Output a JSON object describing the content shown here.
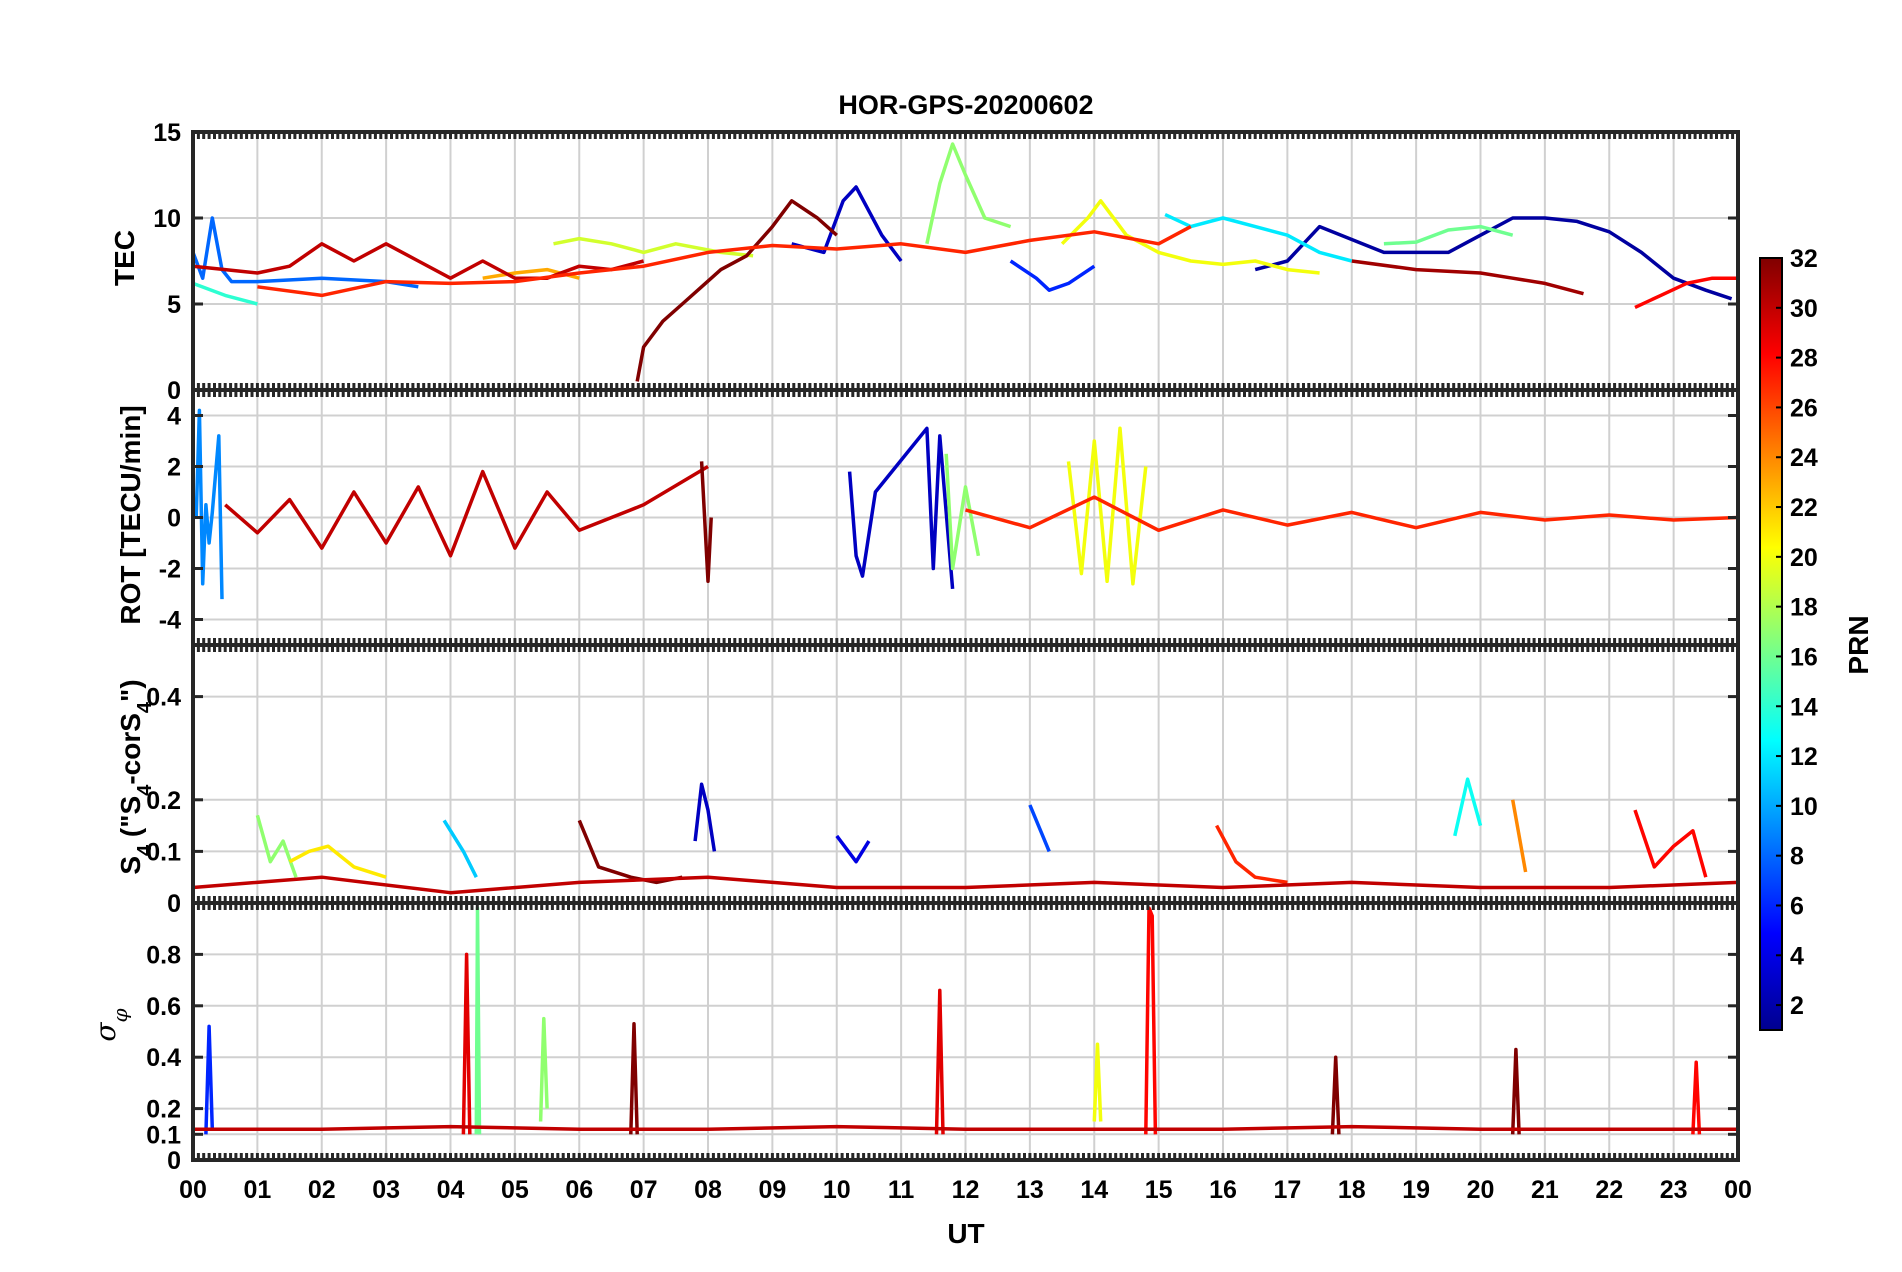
{
  "chart_data": {
    "type": "line",
    "title": "HOR-GPS-20200602",
    "xlabel": "UT",
    "x_ticks": [
      "00",
      "01",
      "02",
      "03",
      "04",
      "05",
      "06",
      "07",
      "08",
      "09",
      "10",
      "11",
      "12",
      "13",
      "14",
      "15",
      "16",
      "17",
      "18",
      "19",
      "20",
      "21",
      "22",
      "23",
      "00"
    ],
    "xlim": [
      0,
      24
    ],
    "colorbar": {
      "label": "PRN",
      "range": [
        1,
        32
      ],
      "ticks": [
        "2",
        "4",
        "6",
        "8",
        "10",
        "12",
        "14",
        "16",
        "18",
        "20",
        "22",
        "24",
        "26",
        "28",
        "30",
        "32"
      ],
      "colormap": [
        "#00008f",
        "#0000ff",
        "#0080ff",
        "#00ffff",
        "#80ff80",
        "#ffff00",
        "#ff8000",
        "#ff0000",
        "#800000"
      ]
    },
    "panels": [
      {
        "id": "tec",
        "ylabel": "TEC",
        "ylim": [
          0,
          15
        ],
        "y_ticks": [
          "0",
          "5",
          "10",
          "15"
        ],
        "series": [
          {
            "prn": 3,
            "x": [
              9.3,
              9.8,
              10.1,
              10.3,
              10.7,
              11.0
            ],
            "y": [
              8.5,
              8.0,
              11.0,
              11.8,
              9.0,
              7.5
            ]
          },
          {
            "prn": 2,
            "x": [
              16.5,
              17.0,
              17.5,
              18.5,
              19.5,
              20.0,
              20.5,
              21.0,
              21.5,
              22.0,
              22.5,
              23.0,
              23.5,
              23.9
            ],
            "y": [
              7.0,
              7.5,
              9.5,
              8.0,
              8.0,
              9.0,
              10.0,
              10.0,
              9.8,
              9.2,
              8.0,
              6.5,
              5.8,
              5.3
            ]
          },
          {
            "prn": 8,
            "x": [
              0.0,
              0.15,
              0.3,
              0.45,
              0.6,
              1.0,
              2.0,
              3.0,
              3.5
            ],
            "y": [
              8.0,
              6.5,
              10.0,
              7.0,
              6.3,
              6.3,
              6.5,
              6.3,
              6.0
            ]
          },
          {
            "prn": 6,
            "x": [
              12.7,
              13.1,
              13.3,
              13.6,
              14.0
            ],
            "y": [
              7.5,
              6.5,
              5.8,
              6.2,
              7.2
            ]
          },
          {
            "prn": 17,
            "x": [
              11.4,
              11.6,
              11.8,
              12.0,
              12.3,
              12.7
            ],
            "y": [
              8.5,
              12.0,
              14.3,
              12.5,
              10.0,
              9.5
            ]
          },
          {
            "prn": 19,
            "x": [
              5.6,
              6.0,
              6.5,
              7.0,
              7.5,
              8.2,
              8.7
            ],
            "y": [
              8.5,
              8.8,
              8.5,
              8.0,
              8.5,
              8.0,
              7.8
            ]
          },
          {
            "prn": 16,
            "x": [
              18.5,
              19.0,
              19.5,
              20.0,
              20.5
            ],
            "y": [
              8.5,
              8.6,
              9.3,
              9.5,
              9.0
            ]
          },
          {
            "prn": 12,
            "x": [
              15.1,
              15.5,
              16.0,
              16.5,
              17.0,
              17.5,
              18.0
            ],
            "y": [
              10.2,
              9.5,
              10.0,
              9.5,
              9.0,
              8.0,
              7.5
            ]
          },
          {
            "prn": 14,
            "x": [
              0.0,
              0.5,
              1.0
            ],
            "y": [
              6.2,
              5.5,
              5.0
            ]
          },
          {
            "prn": 20,
            "x": [
              13.5,
              13.9,
              14.1,
              14.5,
              15.0,
              15.5,
              16.0,
              16.5,
              17.0,
              17.5
            ],
            "y": [
              8.5,
              10.0,
              11.0,
              9.0,
              8.0,
              7.5,
              7.3,
              7.5,
              7.0,
              6.8
            ]
          },
          {
            "prn": 23,
            "x": [
              4.5,
              5.0,
              5.5,
              6.0
            ],
            "y": [
              6.5,
              6.8,
              7.0,
              6.5
            ]
          },
          {
            "prn": 32,
            "x": [
              6.9,
              7.0,
              7.3,
              7.6,
              7.9,
              8.2,
              8.6,
              9.0,
              9.3,
              9.7,
              10.0
            ],
            "y": [
              0.5,
              2.5,
              4.0,
              5.0,
              6.0,
              7.0,
              7.8,
              9.5,
              11.0,
              10.0,
              9.0
            ]
          },
          {
            "prn": 30,
            "x": [
              0.0,
              0.5,
              1.0,
              1.5,
              2.0,
              2.5,
              3.0,
              3.5,
              4.0,
              4.5,
              5.0,
              5.5,
              6.0,
              6.5,
              7.0
            ],
            "y": [
              7.2,
              7.0,
              6.8,
              7.2,
              8.5,
              7.5,
              8.5,
              7.5,
              6.5,
              7.5,
              6.5,
              6.5,
              7.2,
              7.0,
              7.5
            ]
          },
          {
            "prn": 27,
            "x": [
              1.0,
              2.0,
              3.0,
              4.0,
              5.0,
              6.0,
              7.0,
              8.0,
              9.0,
              10.0,
              11.0,
              12.0,
              13.0,
              14.0,
              15.0,
              15.5
            ],
            "y": [
              6.0,
              5.5,
              6.3,
              6.2,
              6.3,
              6.8,
              7.2,
              8.0,
              8.4,
              8.2,
              8.5,
              8.0,
              8.7,
              9.2,
              8.5,
              9.5
            ]
          },
          {
            "prn": 31,
            "x": [
              18.0,
              19.0,
              20.0,
              20.5,
              21.0,
              21.6
            ],
            "y": [
              7.5,
              7.0,
              6.8,
              6.5,
              6.2,
              5.6
            ]
          },
          {
            "prn": 28,
            "x": [
              22.4,
              22.8,
              23.2,
              23.6,
              24.0
            ],
            "y": [
              4.8,
              5.5,
              6.2,
              6.5,
              6.5
            ]
          }
        ]
      },
      {
        "id": "rot",
        "ylabel": "ROT [TECU/min]",
        "ylim": [
          -5,
          5
        ],
        "y_ticks": [
          "-4",
          "-2",
          "0",
          "2",
          "4"
        ],
        "series": [
          {
            "prn": 9,
            "x": [
              0.05,
              0.1,
              0.15,
              0.2,
              0.25,
              0.3,
              0.4,
              0.45
            ],
            "y": [
              0.0,
              4.2,
              -2.6,
              0.5,
              -1.0,
              0.2,
              3.2,
              -3.2
            ]
          },
          {
            "prn": 30,
            "x": [
              0.5,
              1.0,
              1.5,
              2.0,
              2.5,
              3.0,
              3.5,
              4.0,
              4.5,
              5.0,
              5.5,
              6.0,
              7.0,
              8.0
            ],
            "y": [
              0.5,
              -0.6,
              0.7,
              -1.2,
              1.0,
              -1.0,
              1.2,
              -1.5,
              1.8,
              -1.2,
              1.0,
              -0.5,
              0.5,
              2.0
            ]
          },
          {
            "prn": 32,
            "x": [
              7.9,
              8.0,
              8.05
            ],
            "y": [
              2.2,
              -2.5,
              0.0
            ]
          },
          {
            "prn": 3,
            "x": [
              10.2,
              10.3,
              10.4,
              10.6,
              11.4,
              11.5,
              11.6,
              11.8
            ],
            "y": [
              1.8,
              -1.5,
              -2.3,
              1.0,
              3.5,
              -2.0,
              3.2,
              -2.8
            ]
          },
          {
            "prn": 17,
            "x": [
              11.7,
              11.8,
              12.0,
              12.2
            ],
            "y": [
              2.5,
              -2.0,
              1.2,
              -1.5
            ]
          },
          {
            "prn": 20,
            "x": [
              13.6,
              13.8,
              14.0,
              14.2,
              14.4,
              14.6,
              14.8
            ],
            "y": [
              2.2,
              -2.2,
              3.0,
              -2.5,
              3.5,
              -2.6,
              2.0
            ]
          },
          {
            "prn": 27,
            "x": [
              12.0,
              13.0,
              14.0,
              15.0,
              16.0,
              17.0,
              18.0,
              19.0,
              20.0,
              21.0,
              22.0,
              23.0,
              24.0
            ],
            "y": [
              0.3,
              -0.4,
              0.8,
              -0.5,
              0.3,
              -0.3,
              0.2,
              -0.4,
              0.2,
              -0.1,
              0.1,
              -0.1,
              0.0
            ]
          }
        ]
      },
      {
        "id": "s4",
        "ylabel": "S4 (\"S4-corS4\")",
        "ylim": [
          0,
          0.5
        ],
        "y_ticks": [
          "0",
          "0.1",
          "0.2",
          "0.4"
        ],
        "series": [
          {
            "prn": 17,
            "x": [
              1.0,
              1.2,
              1.4,
              1.6
            ],
            "y": [
              0.17,
              0.08,
              0.12,
              0.05
            ]
          },
          {
            "prn": 21,
            "x": [
              1.5,
              1.8,
              2.1,
              2.5,
              3.0
            ],
            "y": [
              0.08,
              0.1,
              0.11,
              0.07,
              0.05
            ]
          },
          {
            "prn": 11,
            "x": [
              3.9,
              4.2,
              4.4
            ],
            "y": [
              0.16,
              0.1,
              0.05
            ]
          },
          {
            "prn": 32,
            "x": [
              6.0,
              6.3,
              6.8,
              7.2,
              7.6
            ],
            "y": [
              0.16,
              0.07,
              0.05,
              0.04,
              0.05
            ]
          },
          {
            "prn": 3,
            "x": [
              7.8,
              7.9,
              8.0,
              8.1
            ],
            "y": [
              0.12,
              0.23,
              0.18,
              0.1
            ]
          },
          {
            "prn": 4,
            "x": [
              10.0,
              10.3,
              10.5
            ],
            "y": [
              0.13,
              0.08,
              0.12
            ]
          },
          {
            "prn": 7,
            "x": [
              13.0,
              13.3
            ],
            "y": [
              0.19,
              0.1
            ]
          },
          {
            "prn": 27,
            "x": [
              15.9,
              16.2,
              16.5,
              17.0
            ],
            "y": [
              0.15,
              0.08,
              0.05,
              0.04
            ]
          },
          {
            "prn": 13,
            "x": [
              19.6,
              19.8,
              20.0
            ],
            "y": [
              0.13,
              0.24,
              0.15
            ]
          },
          {
            "prn": 24,
            "x": [
              20.5,
              20.7
            ],
            "y": [
              0.2,
              0.06
            ]
          },
          {
            "prn": 28,
            "x": [
              22.4,
              22.7,
              23.0,
              23.3,
              23.5
            ],
            "y": [
              0.18,
              0.07,
              0.11,
              0.14,
              0.05
            ]
          },
          {
            "prn": 30,
            "x": [
              0.0,
              2.0,
              4.0,
              6.0,
              8.0,
              10.0,
              12.0,
              14.0,
              16.0,
              18.0,
              20.0,
              22.0,
              24.0
            ],
            "y": [
              0.03,
              0.05,
              0.02,
              0.04,
              0.05,
              0.03,
              0.03,
              0.04,
              0.03,
              0.04,
              0.03,
              0.03,
              0.04
            ]
          }
        ]
      },
      {
        "id": "sigma",
        "ylabel": "σφ",
        "ylim": [
          0,
          1
        ],
        "y_ticks": [
          "0",
          "0.1",
          "0.2",
          "0.4",
          "0.6",
          "0.8"
        ],
        "series": [
          {
            "prn": 6,
            "x": [
              0.2,
              0.25,
              0.3
            ],
            "y": [
              0.1,
              0.52,
              0.12
            ]
          },
          {
            "prn": 29,
            "x": [
              4.2,
              4.25,
              4.3
            ],
            "y": [
              0.1,
              0.8,
              0.1
            ]
          },
          {
            "prn": 16,
            "x": [
              4.4,
              4.42,
              4.45
            ],
            "y": [
              0.1,
              0.98,
              0.1
            ]
          },
          {
            "prn": 17,
            "x": [
              5.4,
              5.45,
              5.5
            ],
            "y": [
              0.15,
              0.55,
              0.2
            ]
          },
          {
            "prn": 32,
            "x": [
              6.8,
              6.85,
              6.9
            ],
            "y": [
              0.1,
              0.53,
              0.1
            ]
          },
          {
            "prn": 29,
            "x": [
              11.55,
              11.6,
              11.65
            ],
            "y": [
              0.1,
              0.66,
              0.1
            ]
          },
          {
            "prn": 20,
            "x": [
              14.0,
              14.05,
              14.1
            ],
            "y": [
              0.15,
              0.45,
              0.15
            ]
          },
          {
            "prn": 28,
            "x": [
              14.8,
              14.85,
              14.9,
              14.95
            ],
            "y": [
              0.1,
              0.98,
              0.95,
              0.1
            ]
          },
          {
            "prn": 32,
            "x": [
              17.7,
              17.75,
              17.8
            ],
            "y": [
              0.1,
              0.4,
              0.1
            ]
          },
          {
            "prn": 32,
            "x": [
              20.5,
              20.55,
              20.6
            ],
            "y": [
              0.1,
              0.43,
              0.1
            ]
          },
          {
            "prn": 28,
            "x": [
              23.3,
              23.35,
              23.4
            ],
            "y": [
              0.1,
              0.38,
              0.1
            ]
          },
          {
            "prn": 30,
            "x": [
              0.0,
              2.0,
              4.0,
              6.0,
              8.0,
              10.0,
              12.0,
              14.0,
              16.0,
              18.0,
              20.0,
              22.0,
              24.0
            ],
            "y": [
              0.12,
              0.12,
              0.13,
              0.12,
              0.12,
              0.13,
              0.12,
              0.12,
              0.12,
              0.13,
              0.12,
              0.12,
              0.12
            ]
          }
        ]
      }
    ]
  }
}
